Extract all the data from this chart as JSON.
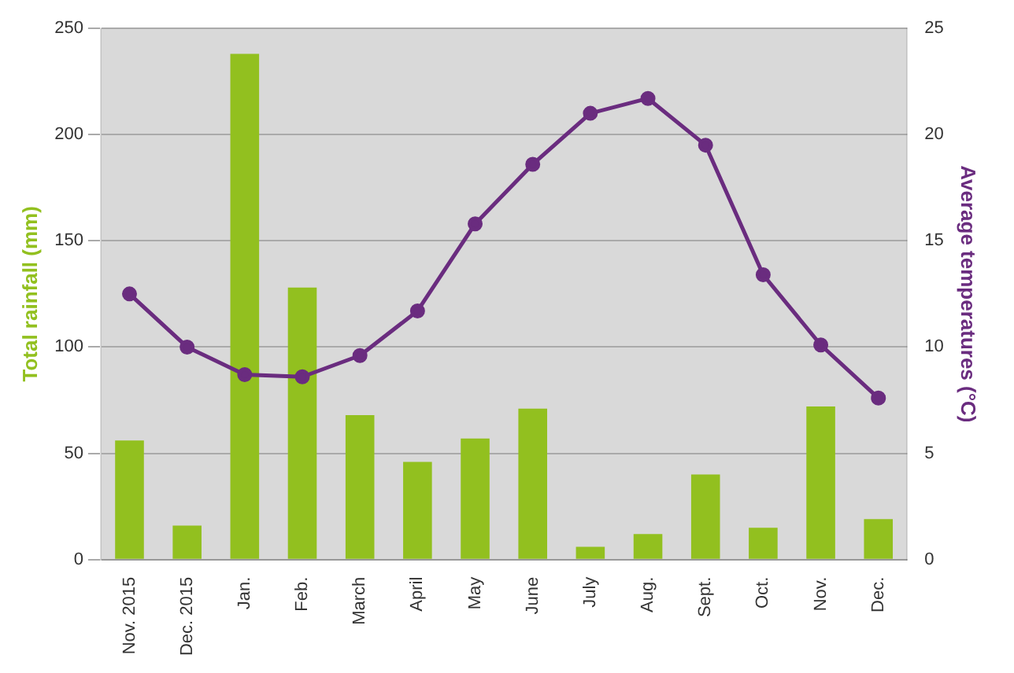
{
  "chart_data": {
    "type": "bar",
    "ylabel": "Total rainfall (mm)",
    "y2label": "Average temperatures (°C)",
    "categories": [
      "Nov. 2015",
      "Dec. 2015",
      "Jan.",
      "Feb.",
      "March",
      "April",
      "May",
      "June",
      "July",
      "Aug.",
      "Sept.",
      "Oct.",
      "Nov.",
      "Dec."
    ],
    "series": [
      {
        "color": "#92c01f",
        "values": [
          56,
          16,
          238,
          128,
          68,
          46,
          57,
          71,
          6,
          12,
          40,
          15,
          72,
          19
        ]
      },
      {
        "type": "line",
        "axis": "y2",
        "color": "#6a2c7f",
        "marker": "circle",
        "values": [
          12.5,
          10.0,
          8.7,
          8.6,
          9.6,
          11.7,
          15.8,
          18.6,
          21.0,
          21.7,
          19.5,
          13.4,
          10.1,
          7.6
        ]
      }
    ],
    "ylim": [
      0,
      250
    ],
    "yticks": [
      0,
      50,
      100,
      150,
      200,
      250
    ],
    "y2lim": [
      0,
      25
    ],
    "y2ticks": [
      0,
      5,
      10,
      15,
      20,
      25
    ],
    "grid": "y",
    "legend": false
  }
}
